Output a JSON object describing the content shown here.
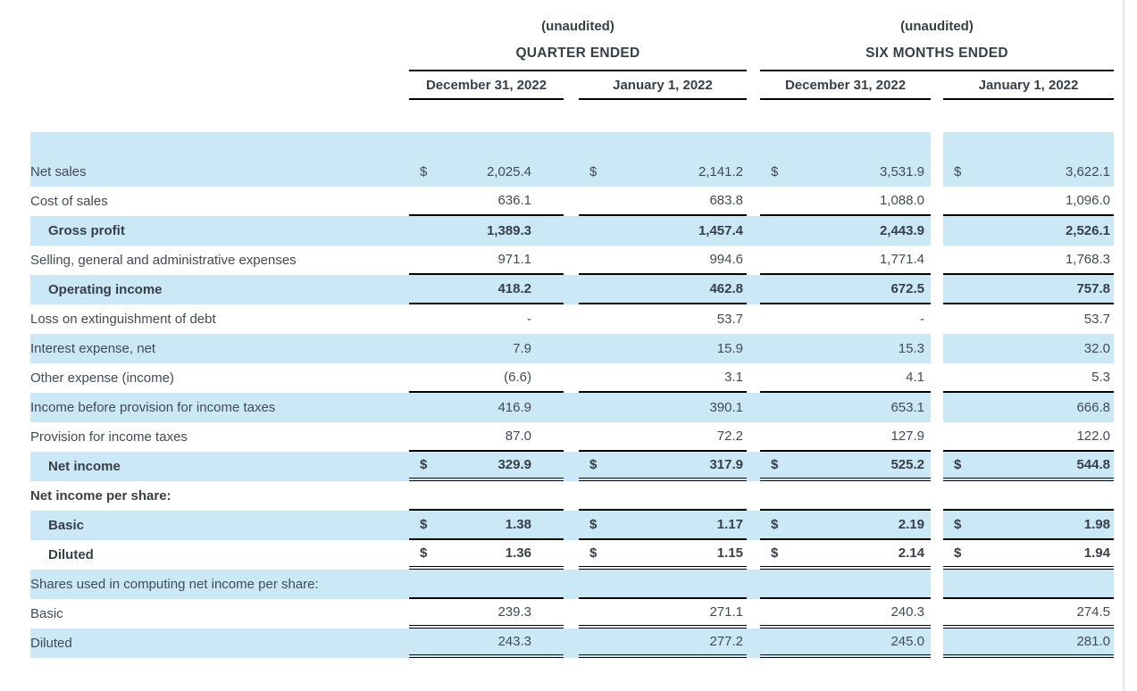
{
  "colors": {
    "stripe_blue": "#cbe8f7",
    "text": "#414b55",
    "header_text": "#373f47",
    "rule_line": "#000000",
    "page_edge": "#e4e6e8"
  },
  "header": {
    "groups": [
      {
        "unaudited": "(unaudited)",
        "title": "QUARTER ENDED",
        "columns": [
          "December 31, 2022",
          "January 1, 2022"
        ]
      },
      {
        "unaudited": "(unaudited)",
        "title": "SIX MONTHS ENDED",
        "columns": [
          "December 31, 2022",
          "January 1, 2022"
        ]
      }
    ]
  },
  "table": {
    "dollar_sign": "$",
    "rows": [
      {
        "label": "",
        "shaded": true,
        "spacer": true,
        "bold": false,
        "indent": false,
        "dollar": false,
        "values": [
          "",
          "",
          "",
          ""
        ],
        "border": "none"
      },
      {
        "label": "Net sales",
        "shaded": true,
        "spacer": false,
        "bold": false,
        "indent": false,
        "dollar": true,
        "values": [
          "2,025.4",
          "2,141.2",
          "3,531.9",
          "3,622.1"
        ],
        "border": "none"
      },
      {
        "label": "Cost of sales",
        "shaded": false,
        "spacer": false,
        "bold": false,
        "indent": false,
        "dollar": false,
        "values": [
          "636.1",
          "683.8",
          "1,088.0",
          "1,096.0"
        ],
        "border": "single"
      },
      {
        "label": "Gross profit",
        "shaded": true,
        "spacer": false,
        "bold": true,
        "indent": true,
        "dollar": false,
        "values": [
          "1,389.3",
          "1,457.4",
          "2,443.9",
          "2,526.1"
        ],
        "border": "none"
      },
      {
        "label": "Selling, general and administrative expenses",
        "shaded": false,
        "spacer": false,
        "bold": false,
        "indent": false,
        "dollar": false,
        "values": [
          "971.1",
          "994.6",
          "1,771.4",
          "1,768.3"
        ],
        "border": "single"
      },
      {
        "label": "Operating income",
        "shaded": true,
        "spacer": false,
        "bold": true,
        "indent": true,
        "dollar": false,
        "values": [
          "418.2",
          "462.8",
          "672.5",
          "757.8"
        ],
        "border": "single"
      },
      {
        "label": "Loss on extinguishment of debt",
        "shaded": false,
        "spacer": false,
        "bold": false,
        "indent": false,
        "dollar": false,
        "values": [
          "-",
          "53.7",
          "-",
          "53.7"
        ],
        "border": "none"
      },
      {
        "label": "Interest expense, net",
        "shaded": true,
        "spacer": false,
        "bold": false,
        "indent": false,
        "dollar": false,
        "values": [
          "7.9",
          "15.9",
          "15.3",
          "32.0"
        ],
        "border": "none"
      },
      {
        "label": "Other expense (income)",
        "shaded": false,
        "spacer": false,
        "bold": false,
        "indent": false,
        "dollar": false,
        "values": [
          "(6.6)",
          "3.1",
          "4.1",
          "5.3"
        ],
        "border": "single"
      },
      {
        "label": "Income before provision for income taxes",
        "shaded": true,
        "spacer": false,
        "bold": false,
        "indent": false,
        "dollar": false,
        "values": [
          "416.9",
          "390.1",
          "653.1",
          "666.8"
        ],
        "border": "none"
      },
      {
        "label": "Provision for income taxes",
        "shaded": false,
        "spacer": false,
        "bold": false,
        "indent": false,
        "dollar": false,
        "values": [
          "87.0",
          "72.2",
          "127.9",
          "122.0"
        ],
        "border": "single"
      },
      {
        "label": "Net income",
        "shaded": true,
        "spacer": false,
        "bold": true,
        "indent": true,
        "dollar": true,
        "values": [
          "329.9",
          "317.9",
          "525.2",
          "544.8"
        ],
        "border": "double"
      },
      {
        "label": "Net income per share:",
        "shaded": false,
        "spacer": false,
        "bold": true,
        "indent": false,
        "dollar": false,
        "values": [
          "",
          "",
          "",
          ""
        ],
        "border": "single"
      },
      {
        "label": "Basic",
        "shaded": true,
        "spacer": false,
        "bold": true,
        "indent": true,
        "dollar": true,
        "values": [
          "1.38",
          "1.17",
          "2.19",
          "1.98"
        ],
        "border": "single"
      },
      {
        "label": "Diluted",
        "shaded": false,
        "spacer": false,
        "bold": true,
        "indent": true,
        "dollar": true,
        "values": [
          "1.36",
          "1.15",
          "2.14",
          "1.94"
        ],
        "border": "double"
      },
      {
        "label": "Shares used in computing net income per share:",
        "shaded": true,
        "spacer": false,
        "bold": false,
        "indent": false,
        "dollar": false,
        "values": [
          "",
          "",
          "",
          ""
        ],
        "border": "single"
      },
      {
        "label": "Basic",
        "shaded": false,
        "spacer": false,
        "bold": false,
        "indent": false,
        "dollar": false,
        "values": [
          "239.3",
          "271.1",
          "240.3",
          "274.5"
        ],
        "border": "double"
      },
      {
        "label": "Diluted",
        "shaded": true,
        "spacer": false,
        "bold": false,
        "indent": false,
        "dollar": false,
        "values": [
          "243.3",
          "277.2",
          "245.0",
          "281.0"
        ],
        "border": "double"
      }
    ]
  }
}
